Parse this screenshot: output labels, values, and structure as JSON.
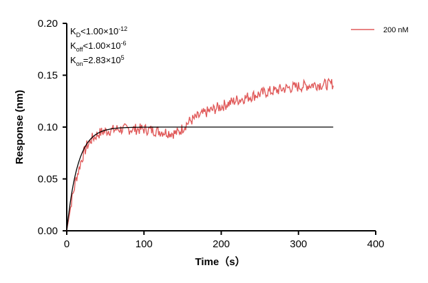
{
  "chart_data": {
    "type": "line",
    "xlabel": "Time（s）",
    "ylabel": "Response (nm)",
    "xlim": [
      0,
      400
    ],
    "ylim": [
      0,
      0.2
    ],
    "x_ticks": [
      "0",
      "100",
      "200",
      "300",
      "400"
    ],
    "y_ticks": [
      "0.00",
      "0.05",
      "0.10",
      "0.15",
      "0.20"
    ],
    "grid": false,
    "legend_position": "top-right",
    "series": [
      {
        "name": "200 nM",
        "color": "#e05a5a",
        "style": "noisy-measured",
        "points": [
          [
            0,
            0.0
          ],
          [
            2,
            0.01
          ],
          [
            4,
            0.018
          ],
          [
            6,
            0.028
          ],
          [
            8,
            0.035
          ],
          [
            10,
            0.042
          ],
          [
            12,
            0.05
          ],
          [
            14,
            0.055
          ],
          [
            16,
            0.06
          ],
          [
            18,
            0.066
          ],
          [
            20,
            0.07
          ],
          [
            22,
            0.075
          ],
          [
            24,
            0.078
          ],
          [
            26,
            0.082
          ],
          [
            28,
            0.083
          ],
          [
            30,
            0.086
          ],
          [
            32,
            0.088
          ],
          [
            34,
            0.09
          ],
          [
            36,
            0.09
          ],
          [
            38,
            0.092
          ],
          [
            40,
            0.093
          ],
          [
            45,
            0.095
          ],
          [
            50,
            0.096
          ],
          [
            55,
            0.097
          ],
          [
            60,
            0.097
          ],
          [
            65,
            0.098
          ],
          [
            70,
            0.098
          ],
          [
            80,
            0.098
          ],
          [
            90,
            0.098
          ],
          [
            100,
            0.098
          ],
          [
            110,
            0.097
          ],
          [
            120,
            0.096
          ],
          [
            130,
            0.095
          ],
          [
            140,
            0.094
          ],
          [
            145,
            0.095
          ],
          [
            150,
            0.099
          ],
          [
            155,
            0.103
          ],
          [
            160,
            0.106
          ],
          [
            170,
            0.11
          ],
          [
            180,
            0.114
          ],
          [
            190,
            0.117
          ],
          [
            200,
            0.12
          ],
          [
            210,
            0.123
          ],
          [
            220,
            0.126
          ],
          [
            230,
            0.128
          ],
          [
            240,
            0.13
          ],
          [
            250,
            0.132
          ],
          [
            260,
            0.134
          ],
          [
            270,
            0.135
          ],
          [
            280,
            0.137
          ],
          [
            290,
            0.138
          ],
          [
            300,
            0.139
          ],
          [
            310,
            0.14
          ],
          [
            320,
            0.141
          ],
          [
            330,
            0.141
          ],
          [
            340,
            0.141
          ],
          [
            345,
            0.142
          ]
        ]
      },
      {
        "name": "",
        "color": "#000000",
        "style": "fit",
        "model": "association",
        "plateau": 0.1,
        "rate": 0.07,
        "x_range": [
          0,
          345
        ]
      }
    ],
    "annotations": [
      {
        "main": "K",
        "sub": "D",
        "rest": "<1.00×10",
        "sup": "-12"
      },
      {
        "main": "K",
        "sub": "off",
        "rest": "<1.00×10",
        "sup": "-6"
      },
      {
        "main": "K",
        "sub": "on",
        "rest": "=2.83×10",
        "sup": "5"
      }
    ]
  }
}
